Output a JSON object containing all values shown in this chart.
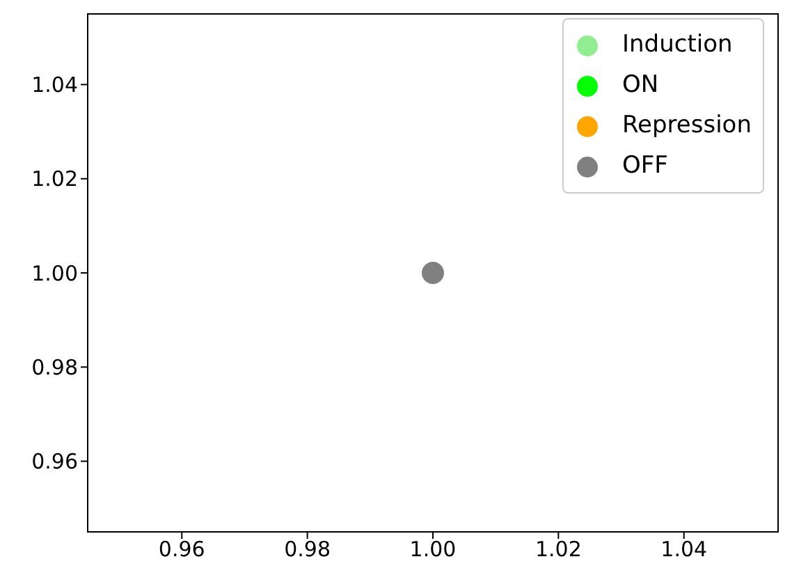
{
  "chart_data": {
    "type": "scatter",
    "x": [
      1.0
    ],
    "series": [
      {
        "name": "Induction",
        "color": "#90ee90",
        "values": [
          null
        ]
      },
      {
        "name": "ON",
        "color": "#00ff00",
        "values": [
          null
        ]
      },
      {
        "name": "Repression",
        "color": "#ffa500",
        "values": [
          null
        ]
      },
      {
        "name": "OFF",
        "color": "#808080",
        "values": [
          1.0
        ]
      }
    ],
    "xlim": [
      0.945,
      1.055
    ],
    "xticks": [
      {
        "value": 0.96,
        "label": "0.96"
      },
      {
        "value": 0.98,
        "label": "0.98"
      },
      {
        "value": 1.0,
        "label": "1.00"
      },
      {
        "value": 1.02,
        "label": "1.02"
      },
      {
        "value": 1.04,
        "label": "1.04"
      }
    ],
    "ylim": [
      0.945,
      1.055
    ],
    "yticks": [
      {
        "value": 0.96,
        "label": "0.96"
      },
      {
        "value": 0.98,
        "label": "0.98"
      },
      {
        "value": 1.0,
        "label": "1.00"
      },
      {
        "value": 1.02,
        "label": "1.02"
      },
      {
        "value": 1.04,
        "label": "1.04"
      }
    ],
    "grid": false,
    "legend": "top right",
    "marker": "circle"
  }
}
